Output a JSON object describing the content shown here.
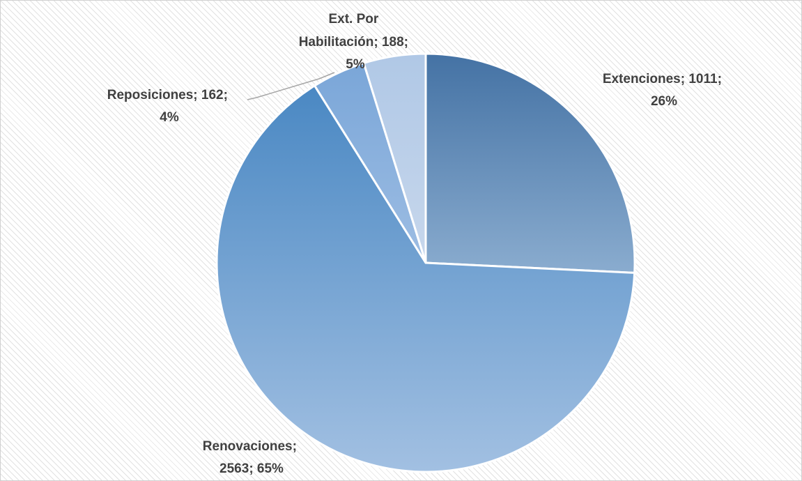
{
  "chart_data": {
    "type": "pie",
    "title": "",
    "legend": "none",
    "slices": [
      {
        "name": "Extenciones",
        "value": 1011,
        "percent": "26%",
        "label_line1": "Extenciones; 1011;",
        "label_line2": "26%",
        "label_line3": ""
      },
      {
        "name": "Renovaciones",
        "value": 2563,
        "percent": "65%",
        "label_line1": "Renovaciones;",
        "label_line2": "2563; 65%",
        "label_line3": ""
      },
      {
        "name": "Reposiciones",
        "value": 162,
        "percent": "4%",
        "label_line1": "Reposiciones; 162;",
        "label_line2": "4%",
        "label_line3": ""
      },
      {
        "name": "Ext. Por Habilitación",
        "value": 188,
        "percent": "5%",
        "label_line1": "Ext. Por",
        "label_line2": "Habilitación; 188;",
        "label_line3": "5%"
      }
    ],
    "colors": {
      "Extenciones": [
        "#4472a4",
        "#8aaccf"
      ],
      "Renovaciones": [
        "#4a88c3",
        "#a2c0e2"
      ],
      "Reposiciones": [
        "#7aa6d8",
        "#9dbde3"
      ],
      "Ext. Por Habilitación": [
        "#b0c8e6",
        "#c7d7ec"
      ]
    }
  }
}
